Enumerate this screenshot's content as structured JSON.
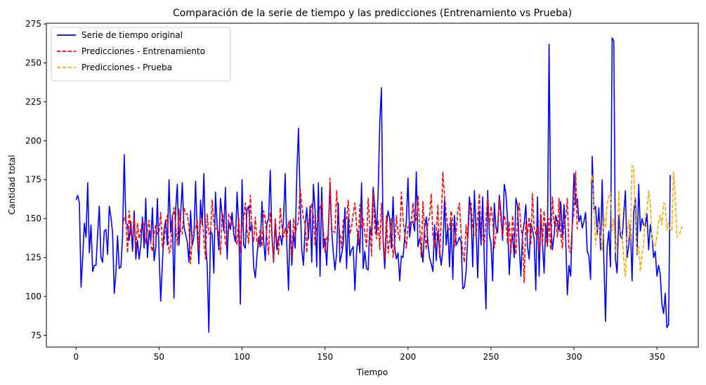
{
  "chart_data": {
    "type": "line",
    "title": "Comparación de la serie de tiempo y las predicciones (Entrenamiento vs Prueba)",
    "xlabel": "Tiempo",
    "ylabel": "Cantidad total",
    "xlim": [
      -17.9,
      374.9
    ],
    "ylim": [
      67.5,
      275.5
    ],
    "xticks": [
      0,
      50,
      100,
      150,
      200,
      250,
      300,
      350
    ],
    "yticks": [
      75,
      100,
      125,
      150,
      175,
      200,
      225,
      250,
      275
    ],
    "grid": false,
    "legend_position": "top-left",
    "series": [
      {
        "name": "Serie de tiempo original",
        "color": "#0000ff",
        "dash": "solid",
        "x_start": 0,
        "values": [
          162,
          165,
          160,
          106,
          125,
          147,
          138,
          173,
          128,
          146,
          116,
          120,
          120,
          140,
          158,
          125,
          122,
          142,
          143,
          127,
          158,
          151,
          141,
          102,
          115,
          139,
          118,
          119,
          138,
          191,
          147,
          146,
          136,
          148,
          129,
          155,
          124,
          136,
          124,
          133,
          151,
          131,
          163,
          125,
          142,
          135,
          157,
          123,
          131,
          163,
          128,
          97,
          121,
          143,
          149,
          133,
          175,
          141,
          152,
          99,
          156,
          172,
          133,
          152,
          173,
          145,
          140,
          135,
          122,
          155,
          133,
          138,
          174,
          141,
          121,
          162,
          146,
          179,
          135,
          120,
          77,
          142,
          140,
          115,
          167,
          146,
          130,
          163,
          152,
          142,
          170,
          124,
          148,
          143,
          154,
          140,
          135,
          167,
          145,
          95,
          175,
          133,
          131,
          156,
          158,
          142,
          146,
          119,
          112,
          126,
          138,
          132,
          161,
          136,
          123,
          147,
          150,
          181,
          139,
          122,
          148,
          130,
          138,
          139,
          133,
          150,
          179,
          132,
          104,
          149,
          120,
          141,
          131,
          179,
          208,
          162,
          130,
          120,
          145,
          157,
          137,
          158,
          122,
          172,
          156,
          119,
          173,
          113,
          170,
          131,
          137,
          120,
          143,
          171,
          143,
          128,
          117,
          128,
          160,
          122,
          127,
          134,
          157,
          118,
          151,
          126,
          130,
          132,
          104,
          128,
          142,
          128,
          173,
          118,
          129,
          118,
          117,
          145,
          139,
          170,
          157,
          140,
          166,
          212,
          234,
          136,
          118,
          145,
          155,
          150,
          131,
          164,
          131,
          124,
          128,
          110,
          126,
          125,
          138,
          148,
          176,
          138,
          148,
          148,
          142,
          180,
          132,
          137,
          133,
          122,
          144,
          151,
          134,
          125,
          121,
          116,
          146,
          123,
          142,
          130,
          120,
          130,
          162,
          133,
          145,
          119,
          149,
          111,
          152,
          133,
          135,
          138,
          135,
          105,
          106,
          116,
          138,
          164,
          153,
          119,
          168,
          143,
          112,
          155,
          133,
          164,
          121,
          92,
          168,
          140,
          134,
          110,
          160,
          144,
          141,
          165,
          154,
          136,
          172,
          166,
          149,
          114,
          133,
          140,
          125,
          163,
          158,
          133,
          113,
          140,
          147,
          159,
          132,
          124,
          147,
          143,
          137,
          104,
          164,
          113,
          151,
          135,
          115,
          147,
          133,
          262,
          148,
          130,
          139,
          152,
          148,
          142,
          161,
          138,
          159,
          138,
          101,
          120,
          113,
          146,
          179,
          159,
          163,
          148,
          152,
          144,
          148,
          154,
          129,
          126,
          111,
          190,
          156,
          158,
          140,
          157,
          130,
          175,
          124,
          84,
          132,
          142,
          119,
          266,
          264,
          124,
          115,
          152,
          139,
          137,
          153,
          168,
          125,
          133,
          146,
          110,
          154,
          163,
          127,
          172,
          142,
          150,
          146,
          145,
          153,
          130,
          146,
          139,
          125,
          129,
          113,
          120,
          114,
          95,
          89,
          102,
          80,
          82,
          178
        ]
      },
      {
        "name": "Predicciones - Entrenamiento",
        "color": "#ff0000",
        "dash": "dashed",
        "x_start": 28,
        "values": [
          145,
          150,
          152,
          128,
          155,
          140,
          138,
          150,
          130,
          147,
          137,
          143,
          148,
          146,
          134,
          143,
          149,
          133,
          129,
          140,
          146,
          140,
          141,
          154,
          132,
          134,
          147,
          152,
          128,
          130,
          150,
          157,
          145,
          133,
          156,
          142,
          140,
          157,
          153,
          153,
          145,
          121,
          139,
          142,
          143,
          150,
          130,
          149,
          150,
          137,
          124,
          153,
          140,
          141,
          162,
          147,
          143,
          144,
          140,
          127,
          154,
          149,
          133,
          133,
          153,
          151,
          145,
          145,
          142,
          133,
          151,
          128,
          147,
          150,
          160,
          143,
          134,
          165,
          142,
          135,
          151,
          135,
          132,
          143,
          132,
          155,
          150,
          138,
          127,
          154,
          142,
          123,
          150,
          135,
          127,
          157,
          145,
          138,
          144,
          137,
          148,
          140,
          125,
          150,
          140,
          145,
          148,
          170,
          159,
          150,
          147,
          128,
          146,
          150,
          160,
          152,
          133,
          145,
          151,
          157,
          161,
          142,
          128,
          138,
          136,
          176,
          144,
          142,
          141,
          168,
          150,
          140,
          131,
          149,
          150,
          150,
          162,
          140,
          145,
          153,
          160,
          146,
          133,
          159,
          144,
          150,
          140,
          132,
          163,
          146,
          126,
          167,
          144,
          137,
          149,
          130,
          160,
          136,
          124,
          152,
          128,
          137,
          150,
          125,
          134,
          152,
          141,
          136,
          167,
          150,
          140,
          131,
          145,
          145,
          149,
          160,
          147,
          150,
          165,
          145,
          125,
          161,
          143,
          130,
          148,
          151,
          166,
          140,
          131,
          140,
          159,
          125,
          148,
          180,
          165,
          153,
          143,
          143,
          155,
          148,
          132,
          141,
          155,
          160,
          140,
          128,
          122,
          146,
          136,
          154,
          160,
          144,
          140,
          139,
          150,
          166,
          141,
          138,
          134,
          150,
          163,
          145,
          158,
          150,
          131,
          140,
          145,
          163,
          149,
          139,
          152,
          148,
          134,
          148,
          127,
          152,
          138,
          127,
          152,
          160,
          144,
          138,
          109,
          148,
          140,
          151,
          133,
          166,
          144,
          140,
          145,
          128,
          157,
          133,
          155,
          139,
          132,
          150,
          130,
          164,
          147,
          150,
          138,
          163,
          140,
          131,
          147,
          150,
          163,
          130,
          128,
          146,
          154,
          180,
          143
        ]
      },
      {
        "name": "Predicciones - Prueba",
        "color": "#ffa500",
        "dash": "dashed",
        "x_start": 310,
        "values": [
          172,
          178,
          157,
          133,
          145,
          148,
          139,
          129,
          152,
          144,
          160,
          164,
          167,
          142,
          150,
          128,
          135,
          168,
          142,
          140,
          124,
          113,
          140,
          149,
          135,
          184,
          183,
          152,
          128,
          132,
          116,
          128,
          133,
          153,
          155,
          168,
          160,
          138,
          133,
          132,
          139,
          148,
          152,
          146,
          160,
          159,
          143,
          147,
          143,
          142,
          180,
          165,
          138,
          140,
          141,
          145
        ]
      }
    ]
  }
}
